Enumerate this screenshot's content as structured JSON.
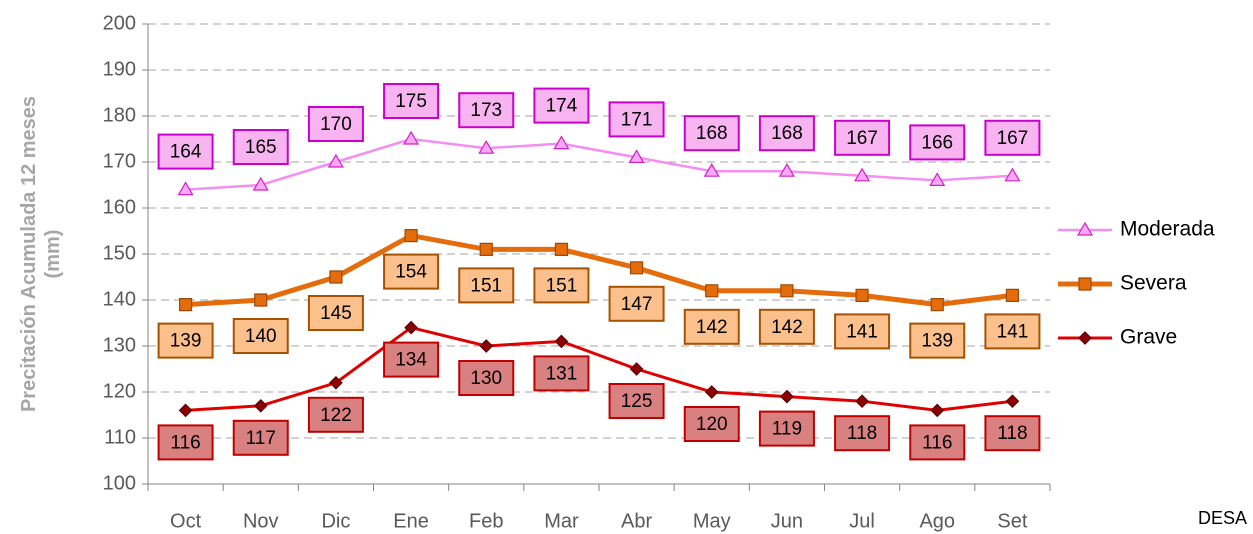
{
  "chart_data": {
    "type": "line",
    "ylabel": [
      "Precitación Acumulada 12 meses",
      "(mm)"
    ],
    "categories": [
      "Oct",
      "Nov",
      "Dic",
      "Ene",
      "Feb",
      "Mar",
      "Abr",
      "May",
      "Jun",
      "Jul",
      "Ago",
      "Set"
    ],
    "series": [
      {
        "name": "Moderada",
        "color": "#f48ef0",
        "values": [
          164,
          165,
          170,
          175,
          173,
          174,
          171,
          168,
          168,
          167,
          166,
          167
        ]
      },
      {
        "name": "Severa",
        "color": "#e46c0a",
        "values": [
          139,
          140,
          145,
          154,
          151,
          151,
          147,
          142,
          142,
          141,
          139,
          141
        ]
      },
      {
        "name": "Grave",
        "color": "#e00000",
        "values": [
          116,
          117,
          122,
          134,
          130,
          131,
          125,
          120,
          119,
          118,
          116,
          118
        ]
      }
    ],
    "ylim": [
      100,
      200
    ],
    "yticks": [
      100,
      110,
      120,
      130,
      140,
      150,
      160,
      170,
      180,
      190,
      200
    ],
    "grid": true,
    "legend": "right",
    "footer_text": "DESA"
  }
}
